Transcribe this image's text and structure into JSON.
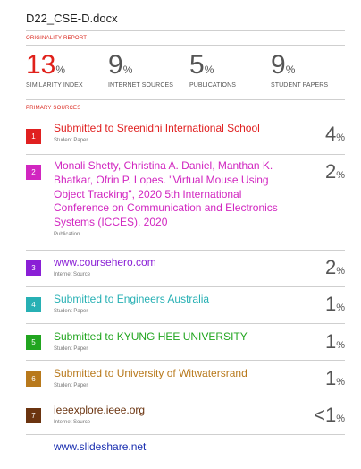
{
  "document": {
    "filename": "D22_CSE-D.docx"
  },
  "originality_label": "ORIGINALITY REPORT",
  "stats": [
    {
      "value": "13",
      "unit": "%",
      "label": "SIMILARITY INDEX"
    },
    {
      "value": "9",
      "unit": "%",
      "label": "INTERNET SOURCES"
    },
    {
      "value": "5",
      "unit": "%",
      "label": "PUBLICATIONS"
    },
    {
      "value": "9",
      "unit": "%",
      "label": "STUDENT PAPERS"
    }
  ],
  "sources_label": "PRIMARY SOURCES",
  "sources": [
    {
      "rank": "1",
      "color": "#e02020",
      "title": "Submitted to Sreenidhi International School",
      "kind": "Student Paper",
      "share": "4",
      "unit": "%"
    },
    {
      "rank": "2",
      "color": "#d126c0",
      "title": "Monali Shetty, Christina A. Daniel, Manthan K. Bhatkar, Ofrin P. Lopes. \"Virtual Mouse Using Object Tracking\", 2020 5th International Conference on Communication and Electronics Systems (ICCES), 2020",
      "kind": "Publication",
      "share": "2",
      "unit": "%"
    },
    {
      "rank": "3",
      "color": "#8a1fd6",
      "title": "www.coursehero.com",
      "kind": "Internet Source",
      "share": "2",
      "unit": "%"
    },
    {
      "rank": "4",
      "color": "#27b0b4",
      "title": "Submitted to Engineers Australia",
      "kind": "Student Paper",
      "share": "1",
      "unit": "%"
    },
    {
      "rank": "5",
      "color": "#21a51f",
      "title": "Submitted to KYUNG HEE UNIVERSITY",
      "kind": "Student Paper",
      "share": "1",
      "unit": "%"
    },
    {
      "rank": "6",
      "color": "#b8791c",
      "title": "Submitted to University of Witwatersrand",
      "kind": "Student Paper",
      "share": "1",
      "unit": "%"
    },
    {
      "rank": "7",
      "color": "#6b3410",
      "title": "ieeexplore.ieee.org",
      "kind": "Internet Source",
      "share": "<1",
      "unit": "%"
    }
  ],
  "next_source": {
    "title": "www.slideshare.net",
    "color": "#1a2fb0"
  }
}
